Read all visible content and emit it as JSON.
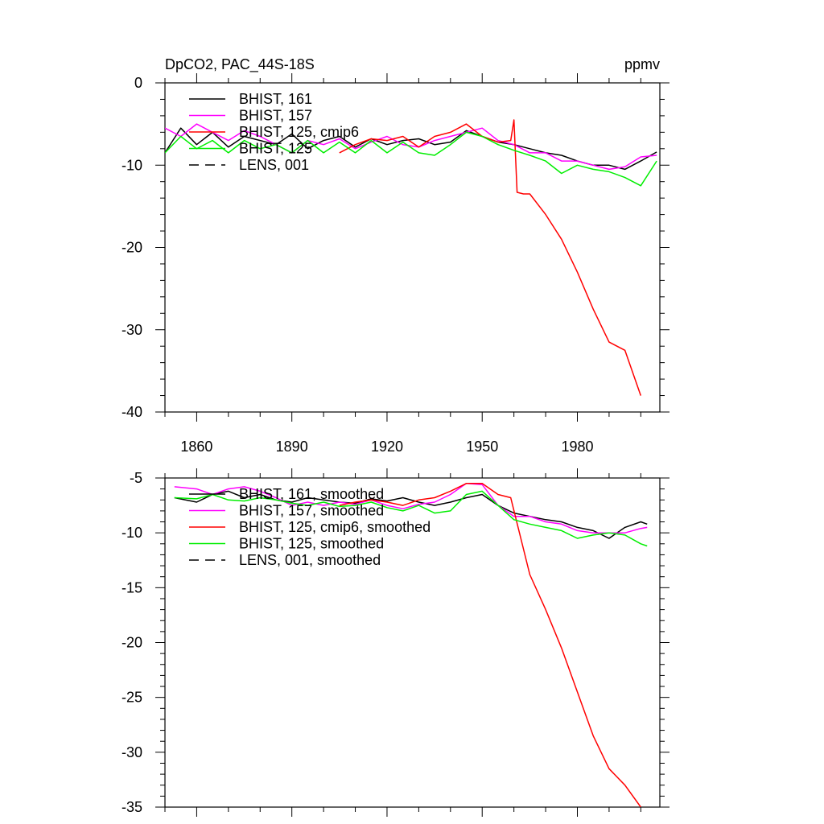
{
  "chart_data": [
    {
      "type": "line",
      "title": "DpCO2, PAC_44S-18S",
      "units": "ppmv",
      "xlim": [
        1850,
        2006
      ],
      "ylim": [
        -40,
        0
      ],
      "xticks": [
        1860,
        1890,
        1920,
        1950,
        1980
      ],
      "yticks": [
        0,
        -10,
        -20,
        -30,
        -40
      ],
      "grid": false,
      "legend_position": "top-left",
      "legend": [
        "BHIST, 161",
        "BHIST, 157",
        "BHIST, 125, cmip6",
        "BHIST, 125",
        "LENS, 001"
      ],
      "series": [
        {
          "name": "BHIST, 161",
          "color": "#000000",
          "dash": "solid",
          "x": [
            1850,
            1855,
            1860,
            1865,
            1870,
            1875,
            1880,
            1885,
            1890,
            1895,
            1900,
            1905,
            1910,
            1915,
            1920,
            1925,
            1930,
            1935,
            1940,
            1945,
            1950,
            1955,
            1960,
            1965,
            1970,
            1975,
            1980,
            1985,
            1990,
            1995,
            2000,
            2005
          ],
          "y": [
            -8.5,
            -5.5,
            -7.5,
            -6,
            -7.8,
            -6.5,
            -7,
            -7.5,
            -6.2,
            -8,
            -7,
            -6.5,
            -7.8,
            -6.8,
            -7.5,
            -7,
            -6.8,
            -7.5,
            -7.2,
            -5.8,
            -6.5,
            -7.2,
            -7.5,
            -8,
            -8.5,
            -8.8,
            -9.5,
            -10,
            -10,
            -10.5,
            -9.5,
            -8.4
          ]
        },
        {
          "name": "BHIST, 157",
          "color": "#ff00ff",
          "dash": "solid",
          "x": [
            1850,
            1855,
            1860,
            1865,
            1870,
            1875,
            1880,
            1885,
            1890,
            1895,
            1900,
            1905,
            1910,
            1915,
            1920,
            1925,
            1930,
            1935,
            1940,
            1945,
            1950,
            1955,
            1960,
            1965,
            1970,
            1975,
            1980,
            1985,
            1990,
            1995,
            2000,
            2005
          ],
          "y": [
            -5.5,
            -6.5,
            -5,
            -6,
            -7,
            -5.8,
            -6.5,
            -7.5,
            -8.5,
            -7,
            -7.5,
            -6.8,
            -8,
            -7.2,
            -6.5,
            -7.5,
            -7.8,
            -7,
            -6.5,
            -6,
            -5.5,
            -7,
            -7.5,
            -8.5,
            -8.5,
            -9.5,
            -9.5,
            -10,
            -10.5,
            -10.2,
            -9,
            -8.8
          ]
        },
        {
          "name": "BHIST, 125, cmip6",
          "color": "#ff0000",
          "dash": "solid",
          "x": [
            1905,
            1910,
            1915,
            1920,
            1925,
            1930,
            1935,
            1940,
            1945,
            1950,
            1955,
            1959,
            1960,
            1961,
            1963,
            1965,
            1970,
            1975,
            1980,
            1985,
            1990,
            1995,
            2000
          ],
          "y": [
            -8.5,
            -7.5,
            -6.8,
            -7,
            -6.5,
            -7.8,
            -6.5,
            -6,
            -5,
            -6.5,
            -7.2,
            -7,
            -4.5,
            -13.3,
            -13.5,
            -13.5,
            -16,
            -19,
            -23,
            -27.5,
            -31.5,
            -32.5,
            -38
          ]
        },
        {
          "name": "BHIST, 125",
          "color": "#00ee00",
          "dash": "solid",
          "x": [
            1850,
            1855,
            1860,
            1865,
            1870,
            1875,
            1880,
            1885,
            1890,
            1895,
            1900,
            1905,
            1910,
            1915,
            1920,
            1925,
            1930,
            1935,
            1940,
            1945,
            1950,
            1955,
            1960,
            1965,
            1970,
            1975,
            1980,
            1985,
            1990,
            1995,
            2000,
            2005
          ],
          "y": [
            -8.5,
            -6.5,
            -8,
            -7,
            -8.5,
            -7,
            -8,
            -7.5,
            -8.5,
            -7,
            -8.5,
            -7.2,
            -8.5,
            -7,
            -8.5,
            -7.2,
            -8.5,
            -8.8,
            -7.5,
            -6,
            -6.5,
            -7.5,
            -8.2,
            -8.8,
            -9.5,
            -11,
            -10,
            -10.5,
            -10.8,
            -11.5,
            -12.5,
            -9.5
          ]
        },
        {
          "name": "LENS, 001",
          "color": "#000000",
          "dash": "dashed",
          "x": [],
          "y": []
        }
      ]
    },
    {
      "type": "line",
      "xlim": [
        1850,
        2006
      ],
      "ylim": [
        -35,
        -5
      ],
      "xticks": [
        1860,
        1890,
        1920,
        1950,
        1980
      ],
      "yticks": [
        -5,
        -10,
        -15,
        -20,
        -25,
        -30,
        -35
      ],
      "grid": false,
      "legend_position": "top-left",
      "legend": [
        "BHIST, 161, smoothed",
        "BHIST, 157, smoothed",
        "BHIST, 125, cmip6, smoothed",
        "BHIST, 125, smoothed",
        "LENS, 001, smoothed"
      ],
      "series": [
        {
          "name": "BHIST, 161, smoothed",
          "color": "#000000",
          "dash": "solid",
          "x": [
            1853,
            1860,
            1865,
            1870,
            1875,
            1880,
            1885,
            1890,
            1895,
            1900,
            1905,
            1910,
            1915,
            1920,
            1925,
            1930,
            1935,
            1940,
            1945,
            1950,
            1955,
            1960,
            1965,
            1970,
            1975,
            1980,
            1985,
            1990,
            1995,
            2000,
            2002
          ],
          "y": [
            -6.8,
            -7.2,
            -6.5,
            -6.2,
            -6.8,
            -6.5,
            -7,
            -7.2,
            -6.8,
            -7,
            -7.2,
            -7.3,
            -6.9,
            -7.1,
            -6.8,
            -7.2,
            -7.5,
            -7.2,
            -6.8,
            -6.5,
            -7.5,
            -8.2,
            -8.5,
            -8.8,
            -9,
            -9.5,
            -9.8,
            -10.5,
            -9.5,
            -9,
            -9.2
          ]
        },
        {
          "name": "BHIST, 157, smoothed",
          "color": "#ff00ff",
          "dash": "solid",
          "x": [
            1853,
            1860,
            1865,
            1870,
            1875,
            1880,
            1885,
            1890,
            1895,
            1900,
            1905,
            1910,
            1915,
            1920,
            1925,
            1930,
            1935,
            1940,
            1945,
            1950,
            1955,
            1960,
            1965,
            1970,
            1975,
            1980,
            1985,
            1990,
            1995,
            2000,
            2002
          ],
          "y": [
            -5.8,
            -6,
            -6.5,
            -6,
            -5.8,
            -6.2,
            -6.8,
            -7.5,
            -7.2,
            -7.5,
            -7.2,
            -7.4,
            -7,
            -7.5,
            -7.8,
            -7.4,
            -7.2,
            -6.5,
            -5.5,
            -5.6,
            -7.5,
            -8.5,
            -8.5,
            -9,
            -9.2,
            -9.8,
            -10,
            -10,
            -10,
            -9.6,
            -9.5
          ]
        },
        {
          "name": "BHIST, 125, cmip6, smoothed",
          "color": "#ff0000",
          "dash": "solid",
          "x": [
            1905,
            1910,
            1915,
            1920,
            1925,
            1930,
            1935,
            1940,
            1945,
            1950,
            1955,
            1959,
            1965,
            1970,
            1975,
            1980,
            1985,
            1990,
            1995,
            2000
          ],
          "y": [
            -7.5,
            -7.2,
            -7,
            -7.2,
            -7.5,
            -7,
            -6.8,
            -6.2,
            -5.5,
            -5.5,
            -6.5,
            -6.8,
            -13.8,
            -17,
            -20.5,
            -24.5,
            -28.5,
            -31.5,
            -33,
            -35
          ]
        },
        {
          "name": "BHIST, 125, smoothed",
          "color": "#00ee00",
          "dash": "solid",
          "x": [
            1853,
            1860,
            1865,
            1870,
            1875,
            1880,
            1885,
            1890,
            1895,
            1900,
            1905,
            1910,
            1915,
            1920,
            1925,
            1930,
            1935,
            1940,
            1945,
            1950,
            1955,
            1960,
            1965,
            1970,
            1975,
            1980,
            1985,
            1990,
            1995,
            2000,
            2002
          ],
          "y": [
            -6.8,
            -6.9,
            -6.5,
            -7,
            -7.1,
            -6.8,
            -7,
            -7.3,
            -7.5,
            -7.2,
            -7.6,
            -7.5,
            -7.2,
            -7.7,
            -8,
            -7.5,
            -8.2,
            -8,
            -6.5,
            -6.2,
            -7.5,
            -8.8,
            -9.2,
            -9.5,
            -9.8,
            -10.5,
            -10.2,
            -10,
            -10.2,
            -11,
            -11.2
          ]
        },
        {
          "name": "LENS, 001, smoothed",
          "color": "#000000",
          "dash": "dashed",
          "x": [],
          "y": []
        }
      ]
    }
  ]
}
